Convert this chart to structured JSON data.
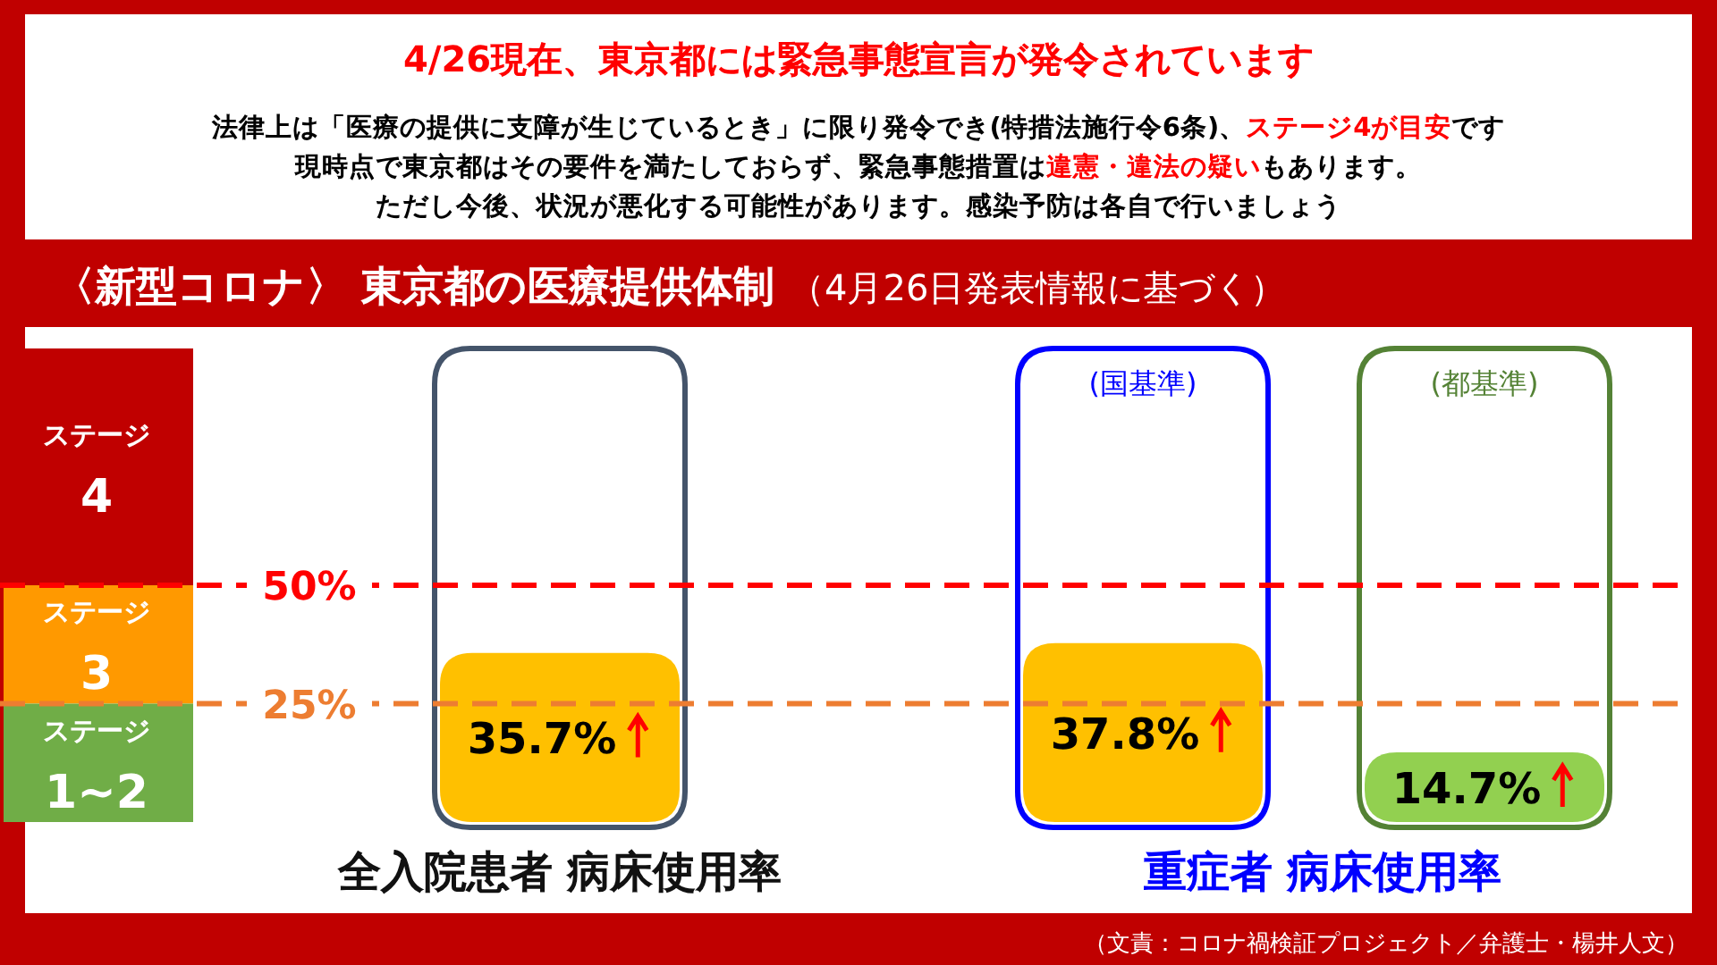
{
  "chart_data": {
    "type": "bar",
    "title": "〈新型コロナ〉 東京都の医療提供体制",
    "subtitle": "（4月26日発表情報に基づく）",
    "categories": [
      "全入院患者 病床使用率",
      null,
      null
    ],
    "values": [
      35.7,
      37.8,
      14.7
    ],
    "colors": [
      "#ffc000",
      "#ffc000",
      "#92d050"
    ],
    "value_labels": [
      "35.7%",
      "37.8%",
      "14.7%"
    ],
    "ylim": [
      0,
      100
    ],
    "ref_lines": [
      {
        "axis": "y",
        "value": 50,
        "label": "50%",
        "color": "#ff0000",
        "line_style": "dashed"
      },
      {
        "axis": "y",
        "value": 25,
        "label": "25%",
        "color": "#ed7d31",
        "line_style": "dashed"
      }
    ],
    "bands": [
      {
        "axis": "y",
        "from": 50,
        "to": 100,
        "label": "ステージ 4",
        "color": "#c00000"
      },
      {
        "axis": "y",
        "from": 25,
        "to": 50,
        "label": "ステージ 3",
        "color": "#ff9900"
      },
      {
        "axis": "y",
        "from": 0,
        "to": 25,
        "label": "ステージ 1~2",
        "color": "#70ad47"
      }
    ],
    "annotations": [
      "4/26現在、東京都には緊急事態宣言が発令されています",
      "法律上は「医療の提供に支障が生じているとき」に限り発令でき(特措法施行令6条)、**ステージ4が目安**です",
      "現時点で東京都はその要件を満たしておらず、緊急事態措置は**違憲・違法の疑い**もあります。",
      "ただし今後、状況が悪化する可能性があります。感染予防は各自で行いましょう",
      "重症者 病床使用率",
      "(国基準)",
      "(都基準)",
      "（文責：コロナ禍検証プロジェクト／弁護士・楊井人文）"
    ],
    "grid": false
  }
}
